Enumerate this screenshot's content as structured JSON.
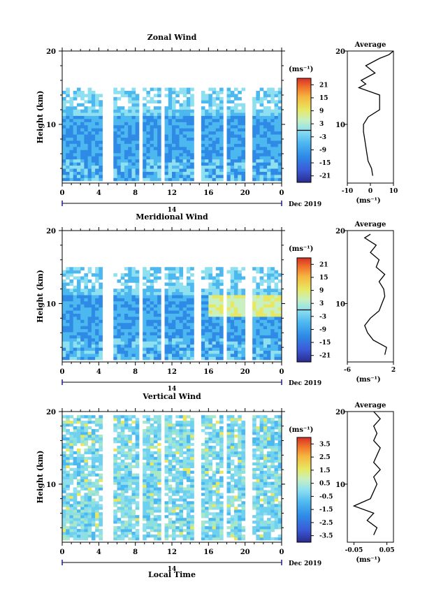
{
  "panels": [
    {
      "title": "Zonal Wind",
      "ylabel": "Height (km)",
      "unit": "(ms⁻¹)",
      "colorbar_ticks": [
        "21",
        "15",
        "9",
        "3",
        "-3",
        "-9",
        "-15",
        "-21"
      ],
      "avg_title": "Average",
      "avg_xticks": [
        "-10",
        "0",
        "10"
      ],
      "avg_xunit": "(ms⁻¹)",
      "xticks": [
        "0",
        "4",
        "8",
        "12",
        "16",
        "20",
        "0"
      ],
      "day_label": "14",
      "date_label": "Dec 2019"
    },
    {
      "title": "Meridional Wind",
      "ylabel": "Height (km)",
      "unit": "(ms⁻¹)",
      "colorbar_ticks": [
        "21",
        "15",
        "9",
        "3",
        "-3",
        "-9",
        "-15",
        "-21"
      ],
      "avg_title": "Average",
      "avg_xticks": [
        "-6",
        "2"
      ],
      "avg_xunit": "(ms⁻¹)",
      "xticks": [
        "0",
        "4",
        "8",
        "12",
        "16",
        "20",
        "0"
      ],
      "day_label": "14",
      "date_label": "Dec 2019"
    },
    {
      "title": "Vertical Wind",
      "ylabel": "Height (km)",
      "unit": "(ms⁻¹)",
      "colorbar_ticks": [
        "3.5",
        "2.5",
        "1.5",
        "0.5",
        "-0.5",
        "-1.5",
        "-2.5",
        "-3.5"
      ],
      "avg_title": "Average",
      "avg_xticks": [
        "-0.05",
        "0.05"
      ],
      "avg_xunit": "(ms⁻¹)",
      "xticks": [
        "0",
        "4",
        "8",
        "12",
        "16",
        "20",
        "0"
      ],
      "day_label": "14",
      "date_label": "Dec 2019",
      "xlabel": "Local Time"
    }
  ],
  "chart_data": [
    {
      "type": "heatmap",
      "title": "Zonal Wind",
      "ylabel": "Height (km)",
      "yticks": [
        "20",
        "10"
      ],
      "xticks": [
        "0",
        "4",
        "8",
        "12",
        "16",
        "20",
        "0"
      ],
      "xlim_hours": [
        0,
        24
      ],
      "ylim_km": [
        2,
        20
      ],
      "colorbar_range": [
        -24,
        24
      ],
      "colorbar_ticks": [
        "21",
        "15",
        "9",
        "3",
        "-3",
        "-9",
        "-15",
        "-21"
      ],
      "date_label": "Dec 2019",
      "colors": [
        "#2b2b8c",
        "#3a5bd8",
        "#2f8ae6",
        "#4db8f0",
        "#8ee0f0",
        "#c8f0c0",
        "#e8e860",
        "#f6b640",
        "#ef6e2a",
        "#d43027"
      ],
      "profile": {
        "title": "Average",
        "xlim": [
          -10,
          10
        ],
        "xticks": [
          "-10",
          "0",
          "10"
        ],
        "heights_km": [
          3,
          4,
          5,
          6,
          7,
          8,
          9,
          10,
          11,
          12,
          13,
          14,
          15,
          15.5,
          16,
          17,
          18,
          19,
          19.5,
          20
        ],
        "values": [
          1,
          0.5,
          -1,
          -1.5,
          -2,
          -2.5,
          -3,
          -3,
          -1,
          4,
          4,
          4,
          -5,
          -2,
          -4,
          2,
          -2,
          4,
          8,
          10
        ]
      }
    },
    {
      "type": "heatmap",
      "title": "Meridional Wind",
      "ylabel": "Height (km)",
      "yticks": [
        "20",
        "10"
      ],
      "xticks": [
        "0",
        "4",
        "8",
        "12",
        "16",
        "20",
        "0"
      ],
      "xlim_hours": [
        0,
        24
      ],
      "ylim_km": [
        2,
        20
      ],
      "colorbar_range": [
        -24,
        24
      ],
      "colorbar_ticks": [
        "21",
        "15",
        "9",
        "3",
        "-3",
        "-9",
        "-15",
        "-21"
      ],
      "date_label": "Dec 2019",
      "profile": {
        "title": "Average",
        "xlim": [
          -6,
          2
        ],
        "xticks": [
          "-6",
          "2"
        ],
        "heights_km": [
          3,
          4,
          5,
          6,
          7,
          8,
          9,
          10,
          11,
          12,
          13,
          14,
          15,
          16,
          17,
          18,
          19,
          19.5
        ],
        "values": [
          0.5,
          0.8,
          -1.5,
          -2.5,
          -3,
          -2,
          -0.5,
          0,
          0.5,
          0.3,
          -0.5,
          0.5,
          -1,
          -0.5,
          -2,
          -1,
          -3,
          -2
        ]
      }
    },
    {
      "type": "heatmap",
      "title": "Vertical Wind",
      "ylabel": "Height (km)",
      "yticks": [
        "20",
        "10"
      ],
      "xticks": [
        "0",
        "4",
        "8",
        "12",
        "16",
        "20",
        "0"
      ],
      "xlim_hours": [
        0,
        24
      ],
      "ylim_km": [
        2,
        20
      ],
      "colorbar_range": [
        -4,
        4
      ],
      "colorbar_ticks": [
        "3.5",
        "2.5",
        "1.5",
        "0.5",
        "-0.5",
        "-1.5",
        "-2.5",
        "-3.5"
      ],
      "date_label": "Dec 2019",
      "xlabel": "Local Time",
      "profile": {
        "title": "Average",
        "xlim": [
          -0.07,
          0.07
        ],
        "xticks": [
          "-0.05",
          "0.05"
        ],
        "heights_km": [
          3,
          4,
          5,
          6,
          7,
          8,
          9,
          10,
          11,
          12,
          13,
          14,
          15,
          16,
          17,
          18,
          19,
          20
        ],
        "values": [
          0.01,
          0.02,
          -0.01,
          0.01,
          -0.05,
          0.0,
          0.01,
          0.02,
          0.01,
          0.03,
          0.01,
          0.02,
          0.03,
          0.01,
          0.02,
          0.01,
          0.03,
          0.01
        ]
      }
    }
  ]
}
